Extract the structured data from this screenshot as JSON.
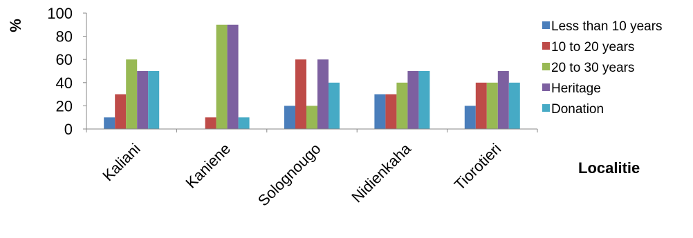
{
  "chart_data": {
    "type": "bar",
    "title": "",
    "xlabel": "Localitie",
    "ylabel": "%",
    "ylim": [
      0,
      100
    ],
    "yticks": [
      0,
      20,
      40,
      60,
      80,
      100
    ],
    "grid": false,
    "legend_position": "right",
    "categories": [
      "Kaliani",
      "Kaniene",
      "Solognougo",
      "Nidienkaha",
      "Tiorotieri"
    ],
    "series": [
      {
        "name": "Less than 10 years",
        "color": "#4a7ebb",
        "values": [
          10,
          0,
          20,
          30,
          20
        ]
      },
      {
        "name": "10 to 20 years",
        "color": "#be4b48",
        "values": [
          30,
          10,
          60,
          30,
          40
        ]
      },
      {
        "name": "20 to 30 years",
        "color": "#98b954",
        "values": [
          60,
          90,
          20,
          40,
          40
        ]
      },
      {
        "name": "Heritage",
        "color": "#7d60a0",
        "values": [
          50,
          90,
          60,
          50,
          50
        ]
      },
      {
        "name": "Donation",
        "color": "#46aac5",
        "values": [
          50,
          10,
          40,
          50,
          40
        ]
      }
    ]
  }
}
